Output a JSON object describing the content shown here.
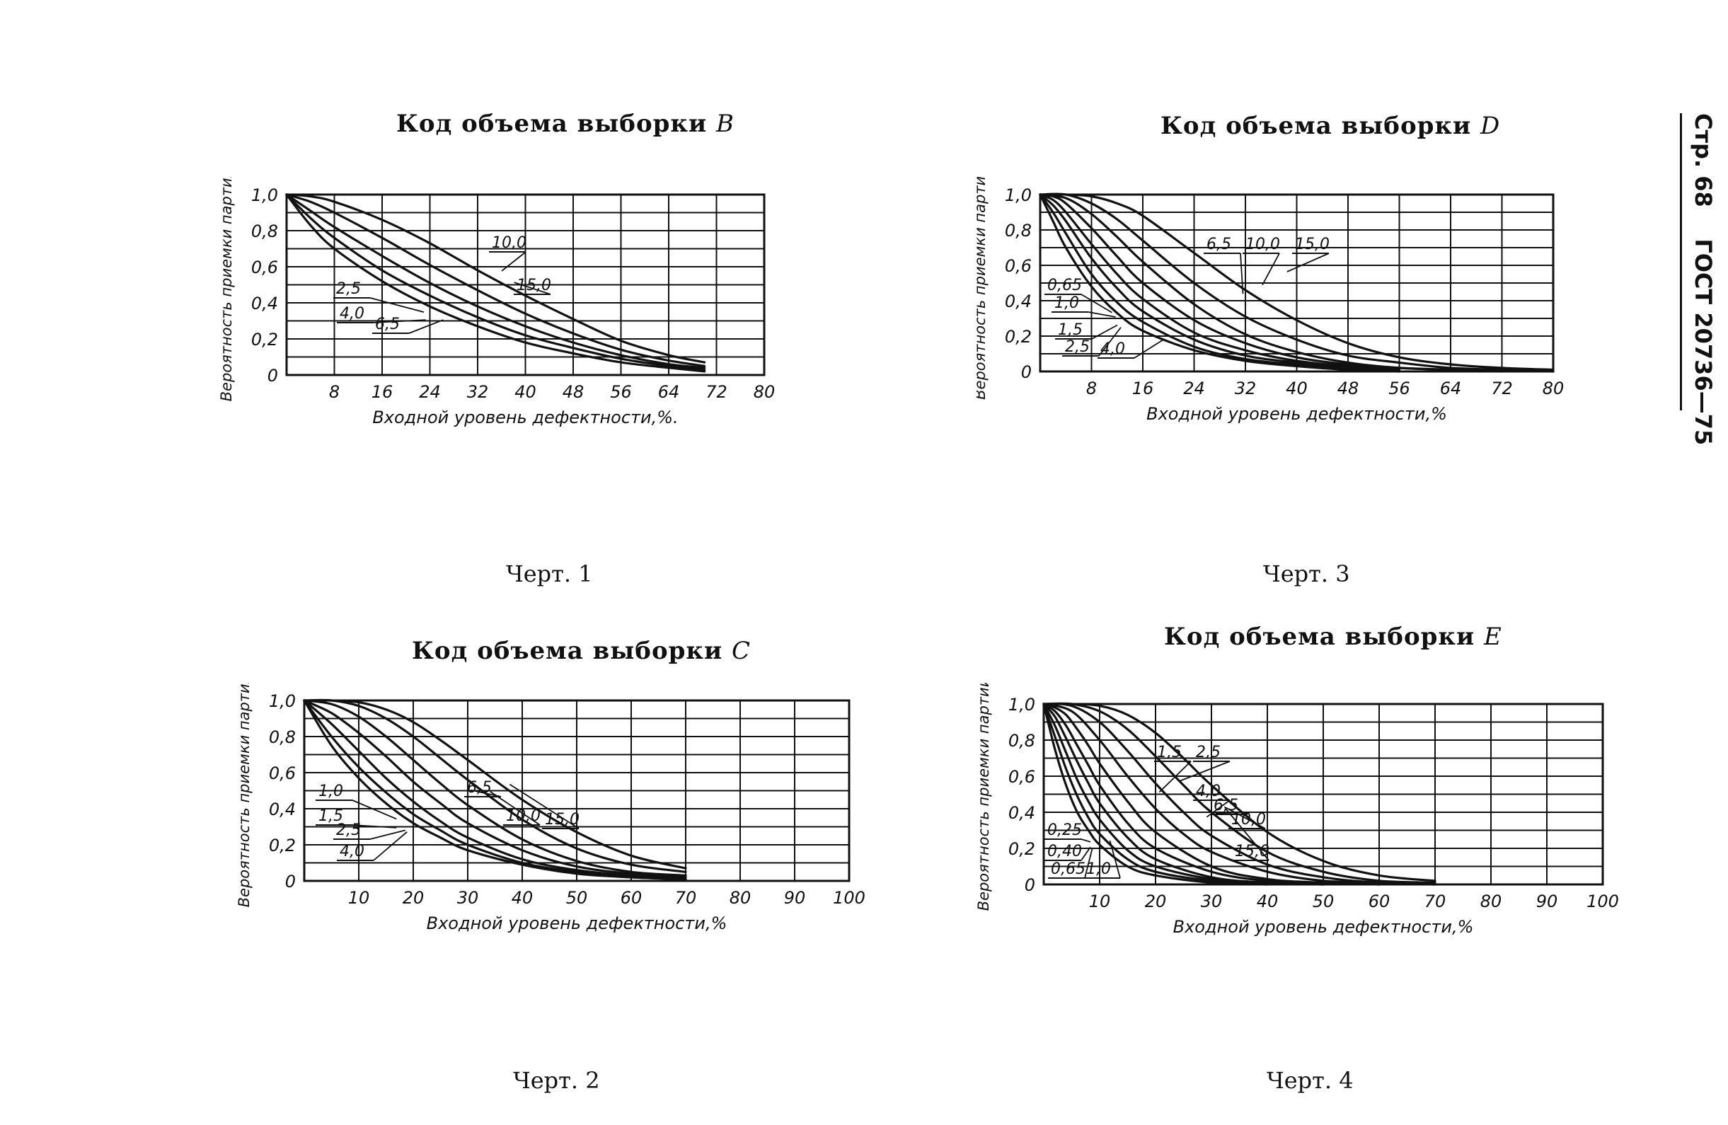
{
  "side_header": {
    "page": "Стр. 68",
    "standard": "ГОСТ 20736—75"
  },
  "charts": [
    {
      "id": "B",
      "title_prefix": "Код объема выборки",
      "code": "B",
      "caption": "Черт. 1",
      "ylabel": "Вероятность приемки партии",
      "xlabel": "Входной уровень дефектности,%.",
      "xticks": [
        "8",
        "16",
        "24",
        "32",
        "40",
        "48",
        "56",
        "64",
        "72",
        "80"
      ],
      "yticks": [
        "0",
        "0,2",
        "0,4",
        "0,6",
        "0,8",
        "1,0"
      ]
    },
    {
      "id": "D",
      "title_prefix": "Код объема выборки",
      "code": "D",
      "caption": "Черт. 3",
      "ylabel": "Вероятность приемки партии",
      "xlabel": "Входной уровень дефектности,%",
      "xticks": [
        "8",
        "16",
        "24",
        "32",
        "40",
        "48",
        "56",
        "64",
        "72",
        "80"
      ],
      "yticks": [
        "0",
        "0,2",
        "0,4",
        "0,6",
        "0,8",
        "1,0"
      ]
    },
    {
      "id": "C",
      "title_prefix": "Код объема выборки",
      "code": "C",
      "caption": "Черт. 2",
      "ylabel": "Вероятность приемки партии",
      "xlabel": "Входной уровень дефектности,%",
      "xticks": [
        "10",
        "20",
        "30",
        "40",
        "50",
        "60",
        "70",
        "80",
        "90",
        "100"
      ],
      "yticks": [
        "0",
        "0,2",
        "0,4",
        "0,6",
        "0,8",
        "1,0"
      ]
    },
    {
      "id": "E",
      "title_prefix": "Код объема выборки",
      "code": "E",
      "caption": "Черт. 4",
      "ylabel": "Вероятность приемки партии",
      "xlabel": "Входной уровень дефектности,%",
      "xticks": [
        "10",
        "20",
        "30",
        "40",
        "50",
        "60",
        "70",
        "80",
        "90",
        "100"
      ],
      "yticks": [
        "0",
        "0,2",
        "0,4",
        "0,6",
        "0,8",
        "1,0"
      ]
    }
  ],
  "chart_data": [
    {
      "type": "line",
      "title": "Код объема выборки B",
      "xlabel": "Входной уровень дефектности, %",
      "ylabel": "Вероятность приемки партии",
      "xlim": [
        0,
        80
      ],
      "ylim": [
        0,
        1.0
      ],
      "grid": true,
      "series": [
        {
          "name": "2,5",
          "x": [
            0,
            4,
            8,
            16,
            24,
            32,
            40,
            48,
            56,
            64,
            70
          ],
          "y": [
            1.0,
            0.83,
            0.7,
            0.52,
            0.38,
            0.27,
            0.18,
            0.12,
            0.07,
            0.04,
            0.02
          ]
        },
        {
          "name": "4,0",
          "x": [
            0,
            4,
            8,
            16,
            24,
            32,
            40,
            48,
            56,
            64,
            70
          ],
          "y": [
            1.0,
            0.87,
            0.76,
            0.58,
            0.44,
            0.32,
            0.22,
            0.15,
            0.09,
            0.05,
            0.03
          ]
        },
        {
          "name": "6,5",
          "x": [
            0,
            4,
            8,
            16,
            24,
            32,
            40,
            48,
            56,
            64,
            70
          ],
          "y": [
            1.0,
            0.91,
            0.82,
            0.66,
            0.51,
            0.38,
            0.27,
            0.18,
            0.11,
            0.06,
            0.04
          ]
        },
        {
          "name": "10,0",
          "x": [
            0,
            4,
            8,
            16,
            24,
            32,
            40,
            48,
            56,
            64,
            70
          ],
          "y": [
            1.0,
            0.96,
            0.9,
            0.76,
            0.61,
            0.47,
            0.34,
            0.23,
            0.14,
            0.08,
            0.05
          ]
        },
        {
          "name": "15,0",
          "x": [
            0,
            4,
            8,
            16,
            24,
            32,
            40,
            48,
            56,
            64,
            70
          ],
          "y": [
            1.0,
            0.99,
            0.96,
            0.86,
            0.73,
            0.58,
            0.44,
            0.31,
            0.19,
            0.11,
            0.07
          ]
        }
      ]
    },
    {
      "type": "line",
      "title": "Код объема выборки D",
      "xlabel": "Входной уровень дефектности, %",
      "ylabel": "Вероятность приемки партии",
      "xlim": [
        0,
        80
      ],
      "ylim": [
        0,
        1.0
      ],
      "grid": true,
      "series": [
        {
          "name": "0,65",
          "x": [
            0,
            2,
            4,
            8,
            12,
            16,
            24,
            32,
            40,
            48,
            56
          ],
          "y": [
            1.0,
            0.85,
            0.7,
            0.48,
            0.33,
            0.23,
            0.12,
            0.06,
            0.03,
            0.01,
            0.0
          ]
        },
        {
          "name": "1,0",
          "x": [
            0,
            2,
            4,
            8,
            12,
            16,
            24,
            32,
            40,
            48,
            56
          ],
          "y": [
            1.0,
            0.9,
            0.78,
            0.55,
            0.39,
            0.28,
            0.14,
            0.07,
            0.04,
            0.02,
            0.01
          ]
        },
        {
          "name": "1,5",
          "x": [
            0,
            2,
            4,
            8,
            12,
            16,
            24,
            32,
            40,
            48,
            56
          ],
          "y": [
            1.0,
            0.94,
            0.85,
            0.64,
            0.47,
            0.34,
            0.18,
            0.09,
            0.05,
            0.02,
            0.01
          ]
        },
        {
          "name": "2,5",
          "x": [
            0,
            2,
            4,
            8,
            12,
            16,
            24,
            32,
            40,
            48,
            56
          ],
          "y": [
            1.0,
            0.97,
            0.9,
            0.72,
            0.55,
            0.41,
            0.22,
            0.12,
            0.06,
            0.03,
            0.01
          ]
        },
        {
          "name": "4,0",
          "x": [
            0,
            2,
            4,
            8,
            12,
            16,
            24,
            32,
            40,
            48,
            56,
            64
          ],
          "y": [
            1.0,
            0.99,
            0.95,
            0.81,
            0.65,
            0.5,
            0.29,
            0.16,
            0.08,
            0.04,
            0.02,
            0.01
          ]
        },
        {
          "name": "6,5",
          "x": [
            0,
            4,
            8,
            12,
            16,
            24,
            32,
            40,
            48,
            56,
            64,
            72
          ],
          "y": [
            1.0,
            0.98,
            0.89,
            0.76,
            0.62,
            0.38,
            0.21,
            0.11,
            0.05,
            0.02,
            0.01,
            0.0
          ]
        },
        {
          "name": "10,0",
          "x": [
            0,
            4,
            8,
            12,
            16,
            24,
            32,
            40,
            48,
            56,
            64,
            72,
            80
          ],
          "y": [
            1.0,
            1.0,
            0.95,
            0.86,
            0.74,
            0.5,
            0.31,
            0.18,
            0.09,
            0.05,
            0.02,
            0.01,
            0.0
          ]
        },
        {
          "name": "15,0",
          "x": [
            0,
            4,
            8,
            12,
            16,
            24,
            32,
            40,
            48,
            56,
            64,
            72,
            80
          ],
          "y": [
            1.0,
            1.0,
            0.99,
            0.95,
            0.88,
            0.67,
            0.46,
            0.29,
            0.16,
            0.08,
            0.04,
            0.02,
            0.01
          ]
        }
      ]
    },
    {
      "type": "line",
      "title": "Код объема выборки C",
      "xlabel": "Входной уровень дефектности, %",
      "ylabel": "Вероятность приемки партии",
      "xlim": [
        0,
        100
      ],
      "ylim": [
        0,
        1.0
      ],
      "grid": true,
      "series": [
        {
          "name": "1,0",
          "x": [
            0,
            5,
            10,
            15,
            20,
            25,
            30,
            40,
            50,
            60,
            70
          ],
          "y": [
            1.0,
            0.75,
            0.57,
            0.43,
            0.32,
            0.24,
            0.17,
            0.09,
            0.04,
            0.02,
            0.01
          ]
        },
        {
          "name": "1,5",
          "x": [
            0,
            5,
            10,
            15,
            20,
            25,
            30,
            40,
            50,
            60,
            70
          ],
          "y": [
            1.0,
            0.8,
            0.63,
            0.49,
            0.37,
            0.28,
            0.2,
            0.1,
            0.05,
            0.02,
            0.01
          ]
        },
        {
          "name": "2,5",
          "x": [
            0,
            5,
            10,
            15,
            20,
            25,
            30,
            40,
            50,
            60,
            70
          ],
          "y": [
            1.0,
            0.87,
            0.72,
            0.57,
            0.44,
            0.33,
            0.24,
            0.12,
            0.06,
            0.03,
            0.01
          ]
        },
        {
          "name": "4,0",
          "x": [
            0,
            5,
            10,
            15,
            20,
            25,
            30,
            40,
            50,
            60,
            70
          ],
          "y": [
            1.0,
            0.93,
            0.82,
            0.69,
            0.55,
            0.43,
            0.32,
            0.17,
            0.08,
            0.04,
            0.02
          ]
        },
        {
          "name": "6,5",
          "x": [
            0,
            5,
            10,
            15,
            20,
            25,
            30,
            40,
            50,
            60,
            70
          ],
          "y": [
            1.0,
            0.98,
            0.91,
            0.8,
            0.67,
            0.54,
            0.42,
            0.23,
            0.11,
            0.05,
            0.03
          ]
        },
        {
          "name": "10,0",
          "x": [
            0,
            5,
            10,
            15,
            20,
            25,
            30,
            40,
            50,
            60,
            70
          ],
          "y": [
            1.0,
            1.0,
            0.97,
            0.9,
            0.8,
            0.68,
            0.56,
            0.34,
            0.18,
            0.09,
            0.05
          ]
        },
        {
          "name": "15,0",
          "x": [
            0,
            5,
            10,
            15,
            20,
            25,
            30,
            40,
            50,
            60,
            70
          ],
          "y": [
            1.0,
            1.0,
            0.99,
            0.95,
            0.88,
            0.78,
            0.67,
            0.45,
            0.27,
            0.14,
            0.07
          ]
        }
      ]
    },
    {
      "type": "line",
      "title": "Код объема выборки E",
      "xlabel": "Входной уровень дефектности, %",
      "ylabel": "Вероятность приемки партии",
      "xlim": [
        0,
        100
      ],
      "ylim": [
        0,
        1.0
      ],
      "grid": true,
      "series": [
        {
          "name": "0,25",
          "x": [
            0,
            2,
            4,
            6,
            8,
            10,
            15,
            20,
            30,
            40
          ],
          "y": [
            1.0,
            0.75,
            0.55,
            0.4,
            0.3,
            0.22,
            0.1,
            0.05,
            0.01,
            0.0
          ]
        },
        {
          "name": "0,40",
          "x": [
            0,
            2,
            4,
            6,
            8,
            10,
            15,
            20,
            30,
            40
          ],
          "y": [
            1.0,
            0.82,
            0.64,
            0.49,
            0.37,
            0.28,
            0.14,
            0.07,
            0.02,
            0.0
          ]
        },
        {
          "name": "0,65",
          "x": [
            0,
            2,
            4,
            6,
            8,
            10,
            15,
            20,
            30,
            40,
            50
          ],
          "y": [
            1.0,
            0.88,
            0.73,
            0.58,
            0.46,
            0.36,
            0.19,
            0.1,
            0.03,
            0.01,
            0.0
          ]
        },
        {
          "name": "1,0",
          "x": [
            0,
            2,
            4,
            6,
            8,
            10,
            15,
            20,
            30,
            40,
            50
          ],
          "y": [
            1.0,
            0.93,
            0.81,
            0.68,
            0.56,
            0.45,
            0.26,
            0.14,
            0.04,
            0.01,
            0.0
          ]
        },
        {
          "name": "1,5",
          "x": [
            0,
            2,
            4,
            6,
            8,
            10,
            15,
            20,
            30,
            40,
            50,
            60
          ],
          "y": [
            1.0,
            0.96,
            0.88,
            0.77,
            0.66,
            0.55,
            0.34,
            0.2,
            0.07,
            0.02,
            0.01,
            0.0
          ]
        },
        {
          "name": "2,5",
          "x": [
            0,
            2,
            4,
            6,
            8,
            10,
            15,
            20,
            30,
            40,
            50,
            60
          ],
          "y": [
            1.0,
            0.98,
            0.94,
            0.86,
            0.77,
            0.67,
            0.46,
            0.29,
            0.1,
            0.03,
            0.01,
            0.0
          ]
        },
        {
          "name": "4,0",
          "x": [
            0,
            5,
            10,
            15,
            20,
            25,
            30,
            40,
            50,
            60,
            70
          ],
          "y": [
            1.0,
            0.96,
            0.8,
            0.6,
            0.42,
            0.28,
            0.18,
            0.07,
            0.02,
            0.01,
            0.0
          ]
        },
        {
          "name": "6,5",
          "x": [
            0,
            5,
            10,
            15,
            20,
            25,
            30,
            40,
            50,
            60,
            70
          ],
          "y": [
            1.0,
            0.99,
            0.9,
            0.74,
            0.56,
            0.4,
            0.27,
            0.11,
            0.04,
            0.01,
            0.0
          ]
        },
        {
          "name": "10,0",
          "x": [
            0,
            5,
            10,
            15,
            20,
            25,
            30,
            40,
            50,
            60,
            70
          ],
          "y": [
            1.0,
            1.0,
            0.96,
            0.86,
            0.71,
            0.55,
            0.4,
            0.18,
            0.07,
            0.02,
            0.01
          ]
        },
        {
          "name": "15,0",
          "x": [
            0,
            5,
            10,
            15,
            20,
            25,
            30,
            40,
            50,
            60,
            70
          ],
          "y": [
            1.0,
            1.0,
            0.99,
            0.94,
            0.84,
            0.7,
            0.55,
            0.29,
            0.13,
            0.05,
            0.02
          ]
        }
      ]
    }
  ]
}
